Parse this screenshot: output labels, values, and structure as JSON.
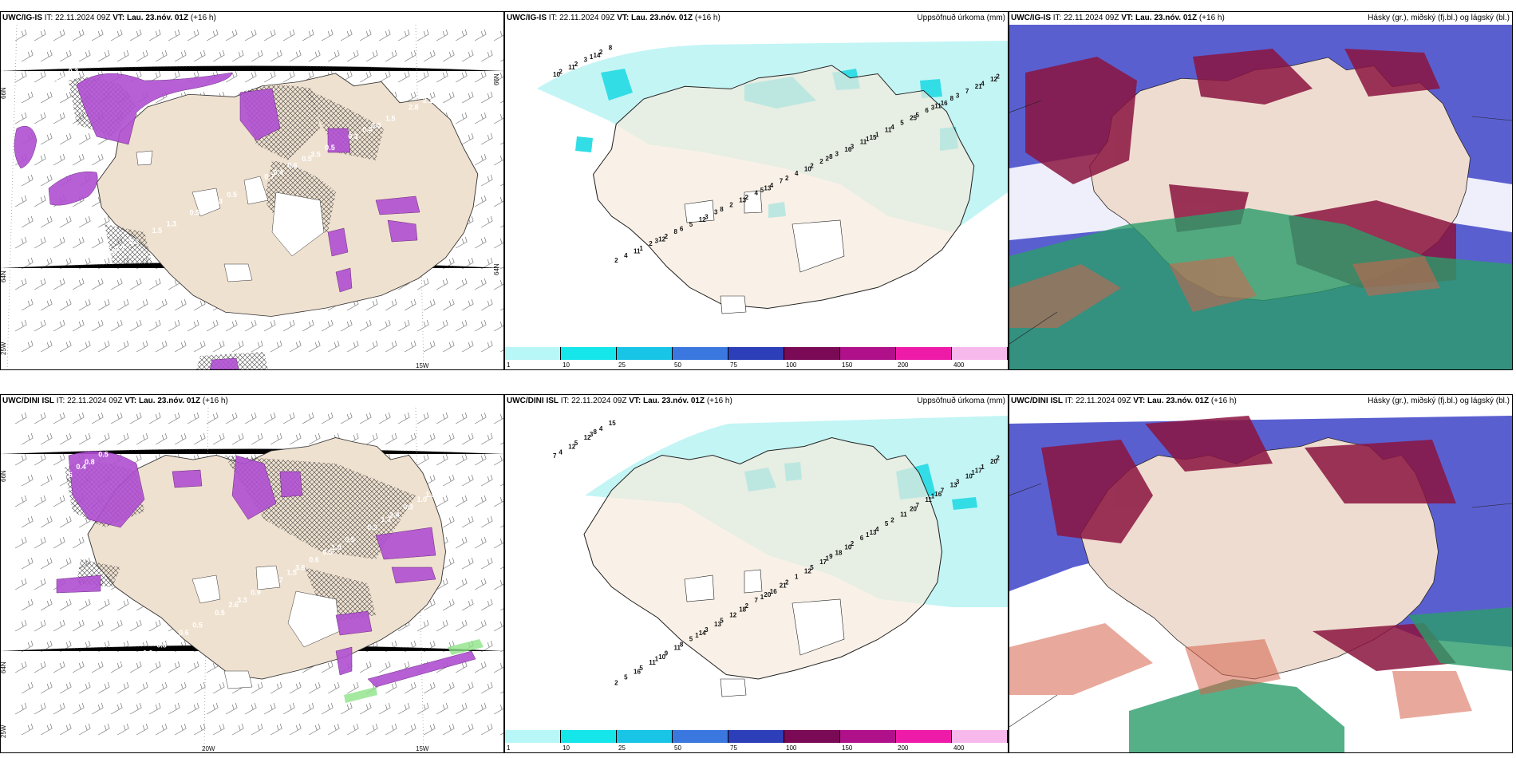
{
  "panels": {
    "top": {
      "wind": {
        "model": "UWC/IG-IS",
        "it": "IT: 22.11.2024 09Z",
        "vt_label": "VT:",
        "vt": "Lau. 23.nóv. 01Z",
        "lead": "(+16 h)",
        "lat_labels": [
          "66N",
          "66N",
          "64N",
          "64N"
        ],
        "lon_labels": [
          "25W",
          "15W"
        ],
        "precip_values": [
          "0.7",
          "0.4",
          "0.7",
          "3.3",
          "2.8",
          "1.0",
          "3.5",
          "1.5",
          "2.8",
          "2.1",
          "0.4",
          "0.3",
          "0.5",
          "0.8",
          "0.6",
          "0.3",
          "1.5",
          "0.5",
          "0.3",
          "0.5",
          "1.3",
          "2.1",
          "0.7",
          "0.5",
          "0.4",
          "2.1",
          "0.8",
          "0.5"
        ]
      },
      "precip": {
        "model": "UWC/IG-IS",
        "it": "IT: 22.11.2024 09Z",
        "vt_label": "VT:",
        "vt": "Lau. 23.nóv. 01Z",
        "lead": "(+16 h)",
        "title": "Uppsöfnuð úrkoma (mm)",
        "values": [
          "10",
          "8",
          "12",
          "11",
          "13",
          "14",
          "15",
          "12",
          "21",
          "10",
          "11",
          "25",
          "13",
          "11",
          "16",
          "8",
          "8",
          "7",
          "8",
          "11",
          "3",
          "12",
          "2",
          "2",
          "6",
          "4",
          "3",
          "11",
          "5",
          "7",
          "4",
          "4",
          "5",
          "2",
          "2",
          "3",
          "2",
          "16",
          "4",
          "2",
          "1",
          "3",
          "4",
          "2",
          "1",
          "5",
          "2",
          "2",
          "3",
          "6",
          "3",
          "2",
          "2",
          "4",
          "8",
          "2",
          "2",
          "3",
          "3",
          "5",
          "1",
          "1"
        ]
      },
      "cloud": {
        "model": "UWC/IG-IS",
        "it": "IT: 22.11.2024 09Z",
        "vt_label": "VT:",
        "vt": "Lau. 23.nóv. 01Z",
        "lead": "(+16 h)",
        "title": "Hásky (gr.), miðský (fj.bl.) og lágský (bl.)"
      }
    },
    "bottom": {
      "wind": {
        "model": "UWC/DINI ISL",
        "it": "IT: 22.11.2024 09Z",
        "vt_label": "VT:",
        "vt": "Lau. 23.nóv. 01Z",
        "lead": "(+16 h)",
        "lat_labels": [
          "66N",
          "64N"
        ],
        "lon_labels": [
          "25W",
          "20W",
          "15W"
        ],
        "precip_values": [
          "1.5",
          "3.6",
          "0.9",
          "2.4",
          "3.3",
          "0.8",
          "1.0",
          "0.6",
          "1.5",
          "0.7",
          "1.3",
          "0.3",
          "0.5",
          "1.6",
          "0.6",
          "0.8",
          "0.3",
          "0.9",
          "0.5",
          "0.5",
          "0.5",
          "1.2",
          "1.5",
          "0.7",
          "1.3",
          "2.6",
          "0.4",
          "0.5",
          "1.3",
          "1.0",
          "1.7"
        ]
      },
      "precip": {
        "model": "UWC/DINI ISL",
        "it": "IT: 22.11.2024 09Z",
        "vt_label": "VT:",
        "vt": "Lau. 23.nóv. 01Z",
        "lead": "(+16 h)",
        "title": "Uppsöfnuð úrkoma (mm)",
        "values": [
          "7",
          "9",
          "10",
          "16",
          "20",
          "8",
          "13",
          "14",
          "17",
          "12",
          "16",
          "20",
          "18",
          "12",
          "10",
          "11",
          "13",
          "21",
          "15",
          "5",
          "13",
          "20",
          "17",
          "11",
          "11",
          "7",
          "12",
          "6",
          "5",
          "10",
          "1",
          "5",
          "11",
          "12",
          "4",
          "18",
          "9",
          "7",
          "16",
          "4",
          "4",
          "3",
          "1",
          "5",
          "5",
          "7",
          "2",
          "5",
          "2",
          "8",
          "3",
          "2",
          "2",
          "2",
          "5",
          "2",
          "1",
          "1",
          "1",
          "1",
          "3",
          "1",
          "1",
          "1"
        ]
      },
      "cloud": {
        "model": "UWC/DINI ISL",
        "it": "IT: 22.11.2024 09Z",
        "vt_label": "VT:",
        "vt": "Lau. 23.nóv. 01Z",
        "lead": "(+16 h)",
        "title": "Hásky (gr.), miðský (fj.bl.) og lágský (bl.)"
      }
    }
  },
  "colorbar": {
    "ticks": [
      "1",
      "10",
      "25",
      "50",
      "75",
      "100",
      "150",
      "200",
      "400"
    ],
    "colors": [
      "#b8f7f7",
      "#14e6ea",
      "#18c5e6",
      "#3a78e0",
      "#2d3fb8",
      "#7a0a55",
      "#b0108a",
      "#ee1ba8",
      "#f7b8ec"
    ]
  },
  "colors": {
    "land": "#efe1d0",
    "precip_light": "#c3f5f5",
    "precip_mid": "#33dde6",
    "purple": "#b04fd2",
    "cloud_high": "#2a9c6a",
    "cloud_mid": "#8b1440",
    "cloud_low": "#4b4fcf"
  }
}
